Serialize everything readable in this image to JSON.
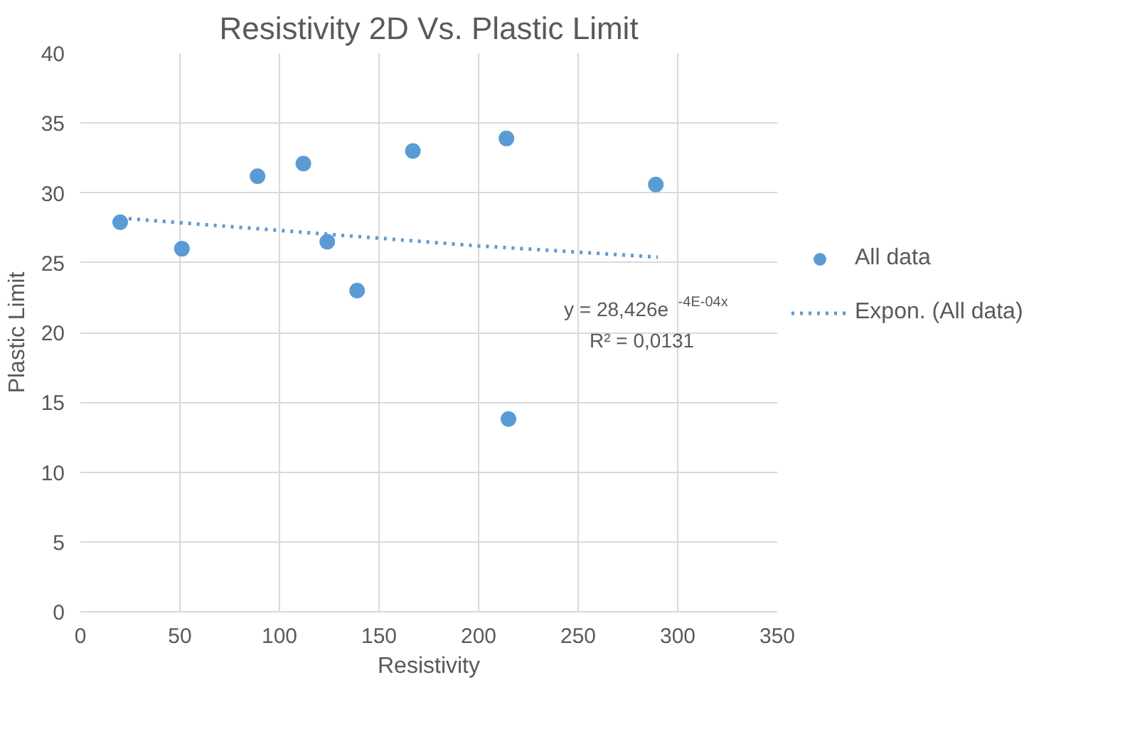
{
  "chart_data": {
    "type": "scatter",
    "title": "Resistivity 2D Vs. Plastic Limit",
    "xlabel": "Resistivity",
    "ylabel": "Plastic Limit",
    "series": [
      {
        "name": "All data",
        "type": "scatter",
        "color": "#5b9bd5",
        "marker": "circle",
        "x": [
          20,
          51,
          89,
          112,
          124,
          139,
          167,
          214,
          215,
          289
        ],
        "values": [
          27.9,
          26.0,
          31.2,
          32.1,
          26.5,
          23.0,
          33.0,
          33.9,
          13.8,
          30.6
        ]
      },
      {
        "name": "Expon. (All data)",
        "type": "line",
        "color": "#5b9bd5",
        "line_style": "dotted",
        "marker": "none",
        "x": [
          20,
          110,
          200,
          290
        ],
        "values": [
          28.2,
          27.2,
          26.2,
          25.4
        ]
      }
    ],
    "annotations": [
      "y = 28,426e$^{-4E-04x}$",
      "R² = 0,0131"
    ],
    "xlim": [
      0,
      350
    ],
    "xticks": [
      0,
      50,
      100,
      150,
      200,
      250,
      300,
      350
    ],
    "ylim": [
      0,
      40
    ],
    "yticks": [
      0,
      5,
      10,
      15,
      20,
      25,
      30,
      35,
      40
    ],
    "grid": true,
    "legend": "right"
  }
}
